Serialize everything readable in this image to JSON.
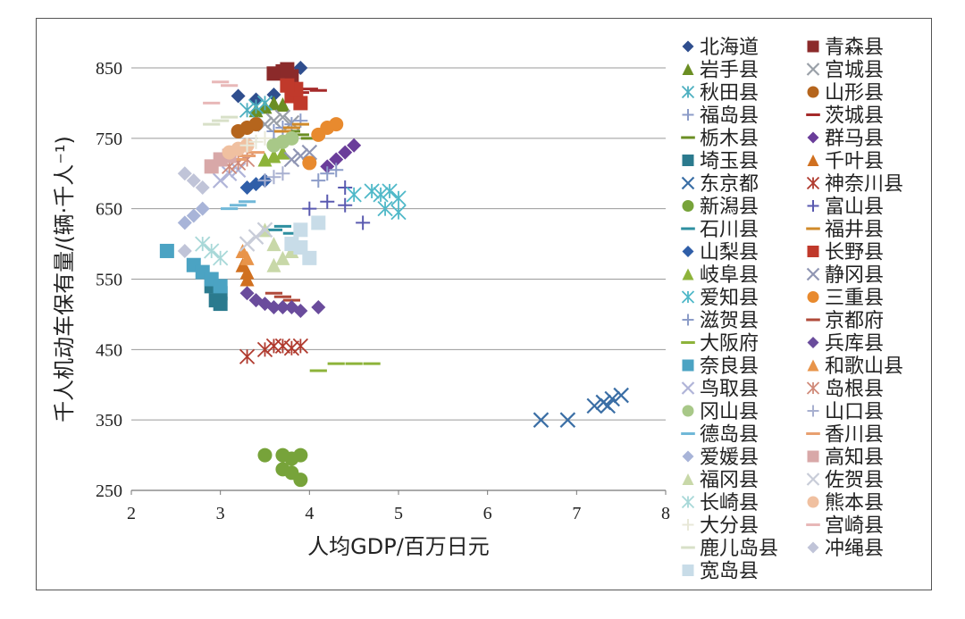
{
  "chart_data": {
    "type": "scatter",
    "title": "",
    "xlabel": "人均GDP/百万日元",
    "ylabel": "千人机动车保有量/(辆·千人⁻¹)",
    "xlim": [
      2,
      8
    ],
    "ylim": [
      250,
      850
    ],
    "xticks": [
      2,
      3,
      4,
      5,
      6,
      7,
      8
    ],
    "yticks": [
      250,
      350,
      450,
      550,
      650,
      750,
      850
    ],
    "grid": "horizontal",
    "legend_position": "right",
    "series": [
      {
        "name": "北海道",
        "marker": "diamond",
        "color": "#2F4E8E",
        "points": [
          [
            3.2,
            810
          ],
          [
            3.4,
            805
          ],
          [
            3.6,
            812
          ],
          [
            3.9,
            850
          ]
        ]
      },
      {
        "name": "青森县",
        "marker": "square",
        "color": "#8B2A2A",
        "points": [
          [
            3.6,
            842
          ],
          [
            3.7,
            845
          ],
          [
            3.8,
            838
          ],
          [
            3.75,
            848
          ]
        ]
      },
      {
        "name": "岩手县",
        "marker": "triangle",
        "color": "#6B8E23",
        "points": [
          [
            3.4,
            790
          ],
          [
            3.5,
            795
          ],
          [
            3.6,
            800
          ],
          [
            3.7,
            798
          ]
        ]
      },
      {
        "name": "宫城县",
        "marker": "x",
        "color": "#9AA0A8",
        "points": [
          [
            3.5,
            770
          ],
          [
            3.6,
            775
          ],
          [
            3.7,
            780
          ],
          [
            3.8,
            772
          ]
        ]
      },
      {
        "name": "秋田县",
        "marker": "star",
        "color": "#4DAFC0",
        "points": [
          [
            3.3,
            790
          ],
          [
            3.4,
            795
          ],
          [
            3.5,
            800
          ]
        ]
      },
      {
        "name": "山形县",
        "marker": "circle",
        "color": "#B5651D",
        "points": [
          [
            3.2,
            760
          ],
          [
            3.3,
            765
          ],
          [
            3.4,
            770
          ]
        ]
      },
      {
        "name": "福岛县",
        "marker": "plus",
        "color": "#8C9CC8",
        "points": [
          [
            3.6,
            760
          ],
          [
            3.7,
            765
          ],
          [
            3.8,
            770
          ],
          [
            3.9,
            775
          ]
        ]
      },
      {
        "name": "茨城县",
        "marker": "dash",
        "color": "#A52A2A",
        "points": [
          [
            3.9,
            815
          ],
          [
            4.0,
            820
          ],
          [
            4.1,
            818
          ]
        ]
      },
      {
        "name": "栃木县",
        "marker": "dash",
        "color": "#6B8E23",
        "points": [
          [
            3.8,
            760
          ],
          [
            3.9,
            755
          ],
          [
            4.0,
            750
          ]
        ]
      },
      {
        "name": "群马县",
        "marker": "diamond",
        "color": "#6A3D9A",
        "points": [
          [
            4.2,
            710
          ],
          [
            4.3,
            720
          ],
          [
            4.4,
            730
          ],
          [
            4.5,
            740
          ]
        ]
      },
      {
        "name": "埼玉县",
        "marker": "square",
        "color": "#2B7A8E",
        "points": [
          [
            2.9,
            540
          ],
          [
            3.0,
            530
          ],
          [
            2.95,
            520
          ],
          [
            3.0,
            515
          ]
        ]
      },
      {
        "name": "千叶县",
        "marker": "triangle",
        "color": "#D07020",
        "points": [
          [
            3.3,
            560
          ],
          [
            3.25,
            570
          ],
          [
            3.3,
            550
          ]
        ]
      },
      {
        "name": "东京都",
        "marker": "x",
        "color": "#3A6EA5",
        "points": [
          [
            6.6,
            350
          ],
          [
            6.9,
            350
          ],
          [
            7.2,
            370
          ],
          [
            7.3,
            375
          ],
          [
            7.4,
            380
          ],
          [
            7.5,
            385
          ],
          [
            7.35,
            370
          ]
        ]
      },
      {
        "name": "神奈川县",
        "marker": "star",
        "color": "#B03A2E",
        "points": [
          [
            3.3,
            440
          ],
          [
            3.5,
            450
          ],
          [
            3.6,
            455
          ],
          [
            3.7,
            455
          ],
          [
            3.8,
            452
          ],
          [
            3.9,
            455
          ]
        ]
      },
      {
        "name": "新潟县",
        "marker": "circle",
        "color": "#77A33A",
        "points": [
          [
            3.5,
            300
          ],
          [
            3.7,
            300
          ],
          [
            3.8,
            295
          ],
          [
            3.9,
            300
          ],
          [
            3.7,
            280
          ],
          [
            3.8,
            275
          ],
          [
            3.9,
            265
          ]
        ]
      },
      {
        "name": "富山县",
        "marker": "plus",
        "color": "#5A5AB0",
        "points": [
          [
            4.0,
            650
          ],
          [
            4.2,
            660
          ],
          [
            4.4,
            655
          ],
          [
            4.6,
            630
          ],
          [
            4.4,
            680
          ]
        ]
      },
      {
        "name": "石川县",
        "marker": "dash",
        "color": "#2E8FA0",
        "points": [
          [
            3.6,
            620
          ],
          [
            3.7,
            625
          ],
          [
            3.8,
            615
          ]
        ]
      },
      {
        "name": "福井县",
        "marker": "dash",
        "color": "#D08A2A",
        "points": [
          [
            3.7,
            760
          ],
          [
            3.8,
            765
          ],
          [
            3.9,
            770
          ]
        ]
      },
      {
        "name": "山梨县",
        "marker": "diamond",
        "color": "#2F5EA8",
        "points": [
          [
            3.3,
            680
          ],
          [
            3.4,
            685
          ],
          [
            3.5,
            690
          ]
        ]
      },
      {
        "name": "长野县",
        "marker": "square",
        "color": "#C0392B",
        "points": [
          [
            3.8,
            810
          ],
          [
            3.9,
            800
          ],
          [
            3.85,
            820
          ],
          [
            3.75,
            825
          ]
        ]
      },
      {
        "name": "岐阜县",
        "marker": "triangle",
        "color": "#8DB33A",
        "points": [
          [
            3.5,
            720
          ],
          [
            3.6,
            725
          ],
          [
            3.7,
            730
          ]
        ]
      },
      {
        "name": "静冈县",
        "marker": "x",
        "color": "#9096B4",
        "points": [
          [
            3.8,
            720
          ],
          [
            3.9,
            725
          ],
          [
            4.0,
            730
          ]
        ]
      },
      {
        "name": "爱知县",
        "marker": "star",
        "color": "#4EB8C8",
        "points": [
          [
            4.5,
            670
          ],
          [
            4.7,
            675
          ],
          [
            4.8,
            670
          ],
          [
            4.9,
            675
          ],
          [
            5.0,
            665
          ],
          [
            4.85,
            650
          ],
          [
            5.0,
            645
          ]
        ]
      },
      {
        "name": "三重县",
        "marker": "circle",
        "color": "#E88A2E",
        "points": [
          [
            4.0,
            715
          ],
          [
            4.1,
            755
          ],
          [
            4.2,
            765
          ],
          [
            4.3,
            770
          ]
        ]
      },
      {
        "name": "滋贺县",
        "marker": "plus",
        "color": "#8C9CC8",
        "points": [
          [
            4.1,
            690
          ],
          [
            4.2,
            700
          ],
          [
            4.3,
            705
          ]
        ]
      },
      {
        "name": "京都府",
        "marker": "dash",
        "color": "#B04A3A",
        "points": [
          [
            3.6,
            530
          ],
          [
            3.7,
            525
          ],
          [
            3.8,
            520
          ]
        ]
      },
      {
        "name": "大阪府",
        "marker": "dash",
        "color": "#8DB33A",
        "points": [
          [
            4.1,
            420
          ],
          [
            4.3,
            430
          ],
          [
            4.5,
            430
          ],
          [
            4.7,
            430
          ]
        ]
      },
      {
        "name": "兵库县",
        "marker": "diamond",
        "color": "#6A4C9C",
        "points": [
          [
            3.3,
            530
          ],
          [
            3.4,
            520
          ],
          [
            3.5,
            515
          ],
          [
            3.6,
            510
          ],
          [
            3.7,
            510
          ],
          [
            3.8,
            510
          ],
          [
            3.9,
            505
          ],
          [
            4.1,
            510
          ]
        ]
      },
      {
        "name": "奈良县",
        "marker": "square",
        "color": "#4BA3C3",
        "points": [
          [
            2.4,
            590
          ],
          [
            2.7,
            570
          ],
          [
            2.8,
            560
          ],
          [
            2.9,
            550
          ],
          [
            3.0,
            540
          ]
        ]
      },
      {
        "name": "和歌山县",
        "marker": "triangle",
        "color": "#E8944A",
        "points": [
          [
            3.3,
            580
          ],
          [
            3.25,
            590
          ]
        ]
      },
      {
        "name": "鸟取县",
        "marker": "x",
        "color": "#B0B4D8",
        "points": [
          [
            3.0,
            690
          ],
          [
            3.1,
            700
          ],
          [
            3.2,
            705
          ]
        ]
      },
      {
        "name": "岛根县",
        "marker": "star",
        "color": "#D08A7A",
        "points": [
          [
            3.1,
            710
          ],
          [
            3.2,
            715
          ],
          [
            3.3,
            720
          ]
        ]
      },
      {
        "name": "冈山县",
        "marker": "circle",
        "color": "#A8C888",
        "points": [
          [
            3.6,
            740
          ],
          [
            3.7,
            745
          ],
          [
            3.8,
            750
          ]
        ]
      },
      {
        "name": "山口县",
        "marker": "plus",
        "color": "#A8B0D0",
        "points": [
          [
            3.5,
            690
          ],
          [
            3.6,
            695
          ],
          [
            3.7,
            700
          ]
        ]
      },
      {
        "name": "德岛县",
        "marker": "dash",
        "color": "#70B8D8",
        "points": [
          [
            3.1,
            650
          ],
          [
            3.2,
            655
          ],
          [
            3.3,
            660
          ]
        ]
      },
      {
        "name": "香川县",
        "marker": "dash",
        "color": "#E8A070",
        "points": [
          [
            3.2,
            720
          ],
          [
            3.3,
            725
          ],
          [
            3.4,
            730
          ]
        ]
      },
      {
        "name": "爱媛县",
        "marker": "diamond",
        "color": "#A8B4D8",
        "points": [
          [
            2.6,
            630
          ],
          [
            2.7,
            640
          ],
          [
            2.8,
            650
          ]
        ]
      },
      {
        "name": "高知县",
        "marker": "square",
        "color": "#D8A8A8",
        "points": [
          [
            2.9,
            710
          ],
          [
            3.0,
            720
          ],
          [
            3.1,
            725
          ]
        ]
      },
      {
        "name": "福冈县",
        "marker": "triangle",
        "color": "#C8D8A8",
        "points": [
          [
            3.5,
            620
          ],
          [
            3.6,
            600
          ],
          [
            3.7,
            580
          ],
          [
            3.6,
            570
          ],
          [
            3.8,
            590
          ]
        ]
      },
      {
        "name": "佐贺县",
        "marker": "x",
        "color": "#C8CCD8",
        "points": [
          [
            3.3,
            600
          ],
          [
            3.4,
            610
          ],
          [
            3.5,
            620
          ]
        ]
      },
      {
        "name": "长崎县",
        "marker": "star",
        "color": "#A8D8D8",
        "points": [
          [
            2.8,
            600
          ],
          [
            2.9,
            590
          ],
          [
            3.0,
            580
          ]
        ]
      },
      {
        "name": "熊本县",
        "marker": "circle",
        "color": "#F0C0A0",
        "points": [
          [
            3.1,
            730
          ],
          [
            3.2,
            735
          ],
          [
            3.3,
            740
          ]
        ]
      },
      {
        "name": "大分县",
        "marker": "plus",
        "color": "#E8E8D8",
        "points": [
          [
            3.3,
            740
          ],
          [
            3.4,
            745
          ],
          [
            3.5,
            750
          ]
        ]
      },
      {
        "name": "宫崎县",
        "marker": "dash",
        "color": "#E8B8B8",
        "points": [
          [
            3.0,
            830
          ],
          [
            3.1,
            825
          ],
          [
            2.9,
            800
          ]
        ]
      },
      {
        "name": "鹿儿岛县",
        "marker": "dash",
        "color": "#D8E0C8",
        "points": [
          [
            2.9,
            770
          ],
          [
            3.0,
            775
          ],
          [
            3.1,
            780
          ]
        ]
      },
      {
        "name": "冲绳县",
        "marker": "diamond",
        "color": "#C0C4D8",
        "points": [
          [
            2.6,
            590
          ],
          [
            2.6,
            700
          ],
          [
            2.7,
            690
          ],
          [
            2.8,
            680
          ]
        ]
      },
      {
        "name": "宽岛县",
        "marker": "square",
        "color": "#C8DCE8",
        "points": [
          [
            3.8,
            600
          ],
          [
            3.9,
            620
          ],
          [
            4.0,
            580
          ],
          [
            4.1,
            630
          ],
          [
            3.9,
            595
          ]
        ]
      }
    ]
  }
}
